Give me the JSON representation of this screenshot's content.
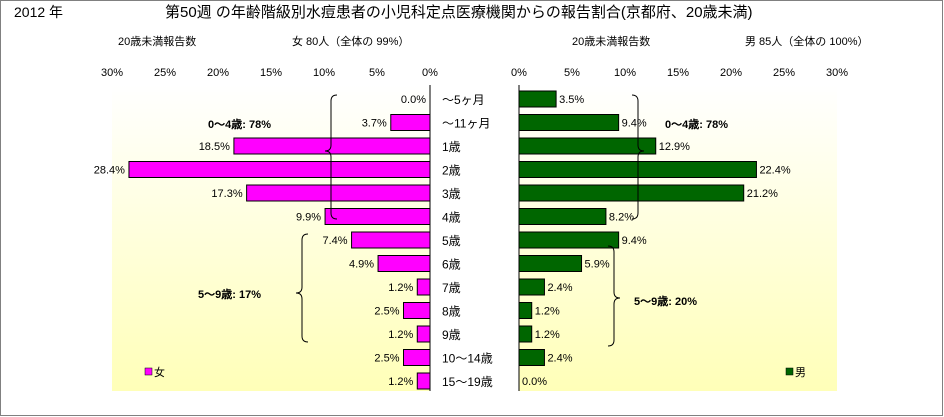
{
  "header": {
    "year": "2012 年",
    "title": "第50週 の年齢階級別水痘患者の小児科定点医療機関からの報告割合(京都府、20歳未満)"
  },
  "colors": {
    "female": "#ff00ff",
    "male": "#006600",
    "plot_bg_top": "#ffffff",
    "plot_bg_bottom": "#ffffb8"
  },
  "chart_data": [
    {
      "type": "bar",
      "orientation": "horizontal",
      "direction": "right-to-left",
      "subtitle_left": "20歳未満報告数",
      "subtitle_right": "女  80人（全体の  99%）",
      "categories": [
        "〜5ヶ月",
        "〜11ヶ月",
        "1歳",
        "2歳",
        "3歳",
        "4歳",
        "5歳",
        "6歳",
        "7歳",
        "8歳",
        "9歳",
        "10〜14歳",
        "15〜19歳"
      ],
      "series": [
        {
          "name": "女",
          "values": [
            0.0,
            3.7,
            18.5,
            28.4,
            17.3,
            9.9,
            7.4,
            4.9,
            1.2,
            2.5,
            1.2,
            2.5,
            1.2
          ],
          "labels": [
            "0.0%",
            "3.7%",
            "18.5%",
            "28.4%",
            "17.3%",
            "9.9%",
            "7.4%",
            "4.9%",
            "1.2%",
            "2.5%",
            "1.2%",
            "2.5%",
            "1.2%"
          ]
        }
      ],
      "xlim": [
        0,
        30
      ],
      "ticks": [
        "30%",
        "25%",
        "20%",
        "15%",
        "10%",
        "5%",
        "0%"
      ],
      "annotations": [
        "0〜4歳: 78%",
        "5〜9歳: 17%"
      ],
      "legend": "bottom-left"
    },
    {
      "type": "bar",
      "orientation": "horizontal",
      "direction": "left-to-right",
      "subtitle_left": "20歳未満報告数",
      "subtitle_right": "男  85人（全体の  100%）",
      "categories": [
        "〜5ヶ月",
        "〜11ヶ月",
        "1歳",
        "2歳",
        "3歳",
        "4歳",
        "5歳",
        "6歳",
        "7歳",
        "8歳",
        "9歳",
        "10〜14歳",
        "15〜19歳"
      ],
      "series": [
        {
          "name": "男",
          "values": [
            3.5,
            9.4,
            12.9,
            22.4,
            21.2,
            8.2,
            9.4,
            5.9,
            2.4,
            1.2,
            1.2,
            2.4,
            0.0
          ],
          "labels": [
            "3.5%",
            "9.4%",
            "12.9%",
            "22.4%",
            "21.2%",
            "8.2%",
            "9.4%",
            "5.9%",
            "2.4%",
            "1.2%",
            "1.2%",
            "2.4%",
            "0.0%"
          ]
        }
      ],
      "xlim": [
        0,
        30
      ],
      "ticks": [
        "0%",
        "5%",
        "10%",
        "15%",
        "20%",
        "25%",
        "30%"
      ],
      "annotations": [
        "0〜4歳: 78%",
        "5〜9歳: 20%"
      ],
      "legend": "bottom-right"
    }
  ]
}
